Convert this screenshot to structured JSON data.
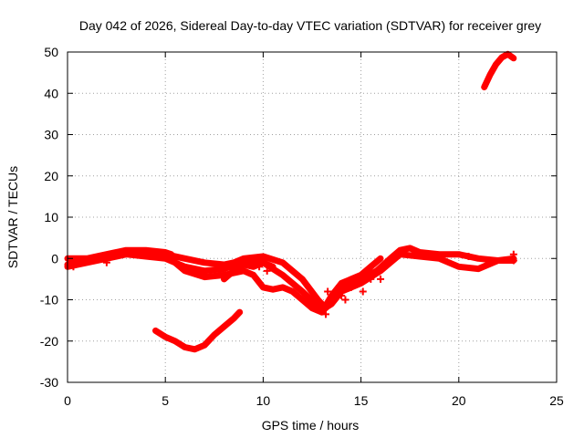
{
  "chart_data": {
    "type": "scatter",
    "title": "Day 042 of 2026, Sidereal Day-to-day VTEC variation (SDTVAR) for receiver grey",
    "xlabel": "GPS time / hours",
    "ylabel": "SDTVAR / TECUs",
    "xlim": [
      0,
      25
    ],
    "ylim": [
      -30,
      50
    ],
    "xticks": [
      0,
      5,
      10,
      15,
      20,
      25
    ],
    "yticks": [
      -30,
      -20,
      -10,
      0,
      10,
      20,
      30,
      40,
      50
    ],
    "xtick_labels": [
      "0",
      "5",
      "10",
      "15",
      "20",
      "25"
    ],
    "ytick_labels": [
      "-30",
      "-20",
      "-10",
      "0",
      "10",
      "20",
      "30",
      "40",
      "50"
    ],
    "grid": true,
    "color": "#ff0000",
    "series": [
      {
        "name": "trace-1",
        "points": [
          [
            0,
            -1.5
          ],
          [
            1,
            -0.5
          ],
          [
            2,
            0.5
          ],
          [
            3,
            1.5
          ],
          [
            4,
            1.5
          ],
          [
            5,
            1
          ],
          [
            6,
            0
          ],
          [
            7,
            -1
          ],
          [
            8,
            -1.5
          ],
          [
            8.5,
            -1
          ],
          [
            9,
            0
          ],
          [
            10,
            0.5
          ],
          [
            11,
            -1
          ],
          [
            12,
            -5
          ],
          [
            12.8,
            -10
          ],
          [
            13.2,
            -12
          ],
          [
            13.5,
            -10
          ],
          [
            14,
            -7
          ],
          [
            15,
            -5
          ],
          [
            15.8,
            -3
          ],
          [
            16.5,
            0
          ],
          [
            17,
            2
          ],
          [
            17.5,
            2.5
          ],
          [
            18,
            1.5
          ],
          [
            19,
            1
          ],
          [
            20,
            1
          ],
          [
            21,
            0
          ],
          [
            22,
            -0.5
          ],
          [
            22.8,
            0
          ]
        ]
      },
      {
        "name": "trace-2",
        "points": [
          [
            0,
            -2
          ],
          [
            1,
            -1
          ],
          [
            2,
            0
          ],
          [
            3,
            1
          ],
          [
            4,
            0.5
          ],
          [
            5,
            0
          ],
          [
            6,
            -2
          ],
          [
            7,
            -3
          ],
          [
            8,
            -2.5
          ],
          [
            9,
            -1
          ],
          [
            10,
            -1
          ],
          [
            11,
            -4
          ],
          [
            12,
            -8
          ],
          [
            13,
            -12.5
          ],
          [
            13.5,
            -11
          ],
          [
            14,
            -8
          ],
          [
            15,
            -6
          ],
          [
            16,
            -3
          ],
          [
            17,
            1
          ],
          [
            18,
            0.5
          ],
          [
            19,
            0
          ],
          [
            20,
            -2
          ],
          [
            21,
            -2.5
          ],
          [
            22,
            -0.5
          ],
          [
            22.8,
            -0.5
          ]
        ]
      },
      {
        "name": "trace-3",
        "points": [
          [
            5,
            1
          ],
          [
            5.5,
            -1
          ],
          [
            6,
            -3
          ],
          [
            7,
            -4.5
          ],
          [
            8,
            -4
          ],
          [
            9,
            -3
          ],
          [
            9.5,
            -4
          ],
          [
            10,
            -7
          ],
          [
            10.5,
            -7.5
          ],
          [
            11,
            -7
          ],
          [
            11.5,
            -8
          ],
          [
            12,
            -10
          ],
          [
            12.5,
            -12
          ],
          [
            13,
            -13
          ]
        ]
      },
      {
        "name": "trace-4",
        "points": [
          [
            8,
            -5
          ],
          [
            8.5,
            -3
          ],
          [
            9,
            -1.5
          ],
          [
            9.5,
            -2
          ],
          [
            10,
            -1
          ],
          [
            10.5,
            -2
          ]
        ]
      },
      {
        "name": "trace-5",
        "points": [
          [
            4.5,
            -17.5
          ],
          [
            5,
            -19
          ],
          [
            5.5,
            -20
          ],
          [
            6,
            -21.5
          ],
          [
            6.5,
            -22
          ],
          [
            7,
            -21
          ],
          [
            7.5,
            -18.5
          ],
          [
            8,
            -16.5
          ],
          [
            8.5,
            -14.5
          ],
          [
            8.8,
            -13
          ]
        ]
      },
      {
        "name": "trace-6",
        "points": [
          [
            21.3,
            41.5
          ],
          [
            21.6,
            44.5
          ],
          [
            21.9,
            47
          ],
          [
            22.2,
            48.7
          ],
          [
            22.5,
            49.5
          ],
          [
            22.8,
            48.5
          ]
        ]
      },
      {
        "name": "trace-7",
        "points": [
          [
            0,
            0
          ],
          [
            1,
            0
          ],
          [
            2,
            1
          ],
          [
            3,
            2
          ],
          [
            4,
            2
          ],
          [
            5,
            1.5
          ],
          [
            5.3,
            1
          ]
        ]
      },
      {
        "name": "trace-8",
        "points": [
          [
            13,
            -13
          ],
          [
            13.5,
            -9
          ],
          [
            14,
            -6
          ],
          [
            14.5,
            -5
          ],
          [
            15,
            -4
          ],
          [
            15.5,
            -2
          ],
          [
            16,
            0
          ]
        ]
      }
    ],
    "markers": [
      [
        13.2,
        -13.5
      ],
      [
        13.3,
        -8
      ],
      [
        14,
        -9
      ],
      [
        14.2,
        -10
      ],
      [
        14.5,
        -7
      ],
      [
        15.1,
        -8
      ],
      [
        15.5,
        -5
      ],
      [
        16,
        -5
      ],
      [
        3.5,
        1
      ],
      [
        2,
        -1
      ],
      [
        0.3,
        -2
      ],
      [
        22.8,
        1
      ],
      [
        22.8,
        -0.5
      ],
      [
        20.5,
        0.5
      ],
      [
        10.2,
        -3
      ],
      [
        9.8,
        -2
      ]
    ]
  }
}
